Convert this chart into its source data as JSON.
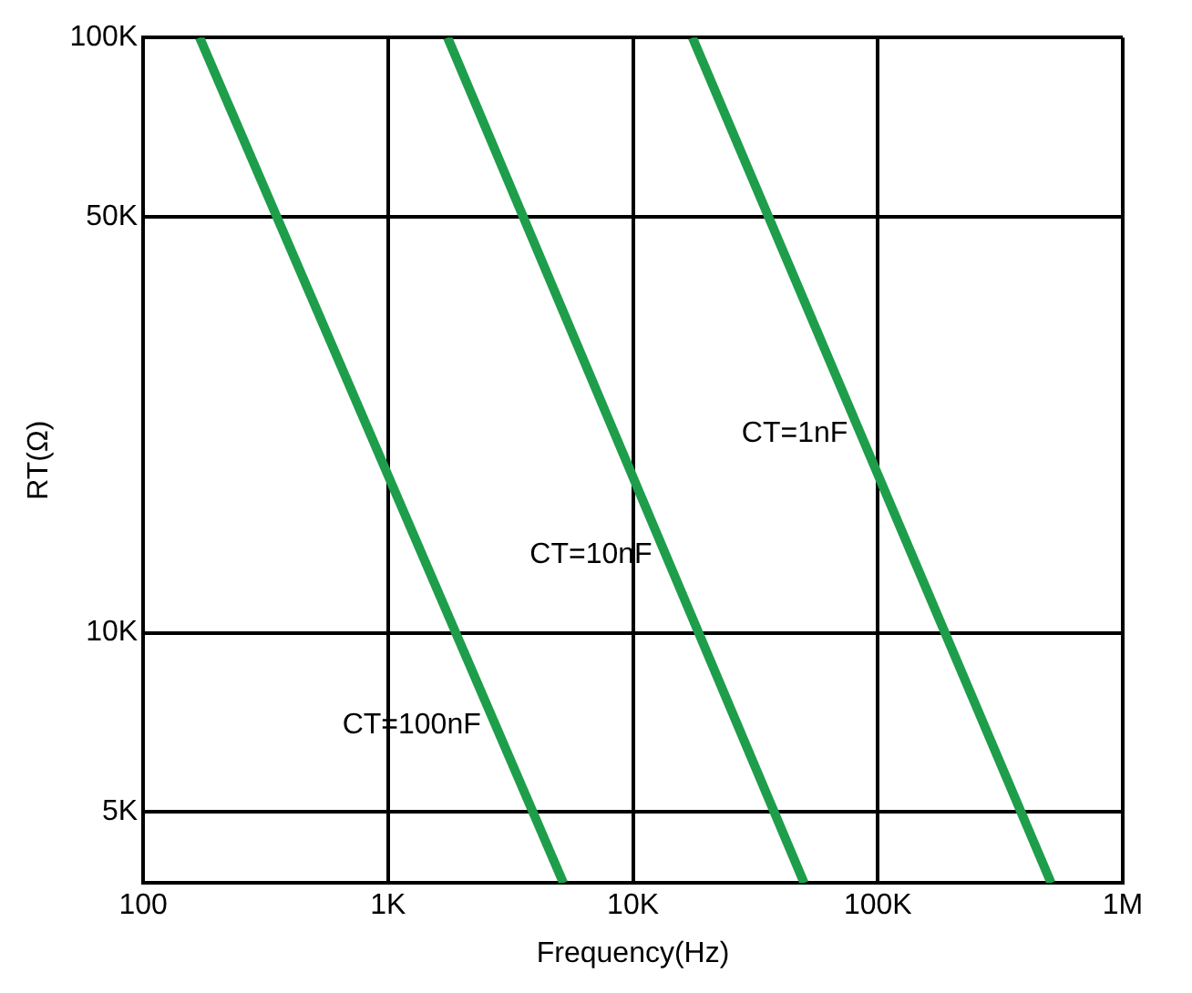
{
  "chart_data": {
    "type": "line",
    "xlabel": "Frequency(Hz)",
    "ylabel": "RT(Ω)",
    "log": "xy",
    "xlim": [
      100,
      1000000
    ],
    "ylim": [
      3800,
      100000
    ],
    "xticks": [
      {
        "value": 100,
        "label": "100"
      },
      {
        "value": 1000,
        "label": "1K"
      },
      {
        "value": 10000,
        "label": "10K"
      },
      {
        "value": 100000,
        "label": "100K"
      },
      {
        "value": 1000000,
        "label": "1M"
      }
    ],
    "yticks": [
      {
        "value": 5000,
        "label": "5K"
      },
      {
        "value": 10000,
        "label": "10K"
      },
      {
        "value": 50000,
        "label": "50K"
      },
      {
        "value": 100000,
        "label": "100K"
      }
    ],
    "grid": true,
    "legend": false,
    "marker": "none",
    "line_style": "solid",
    "series": [
      {
        "color": "#1e9e4a",
        "x": [
          170,
          5200
        ],
        "values": [
          100000,
          3800
        ]
      },
      {
        "color": "#1e9e4a",
        "x": [
          1750,
          50000
        ],
        "values": [
          100000,
          3800
        ]
      },
      {
        "color": "#1e9e4a",
        "x": [
          17500,
          510000
        ],
        "values": [
          100000,
          3800
        ]
      }
    ],
    "annotations": [
      {
        "text": "CT=100nF",
        "x": 2700,
        "y": 7000
      },
      {
        "text": "CT=10nF",
        "x": 13500,
        "y": 13500
      },
      {
        "text": "CT=1nF",
        "x": 85000,
        "y": 21600
      }
    ]
  }
}
